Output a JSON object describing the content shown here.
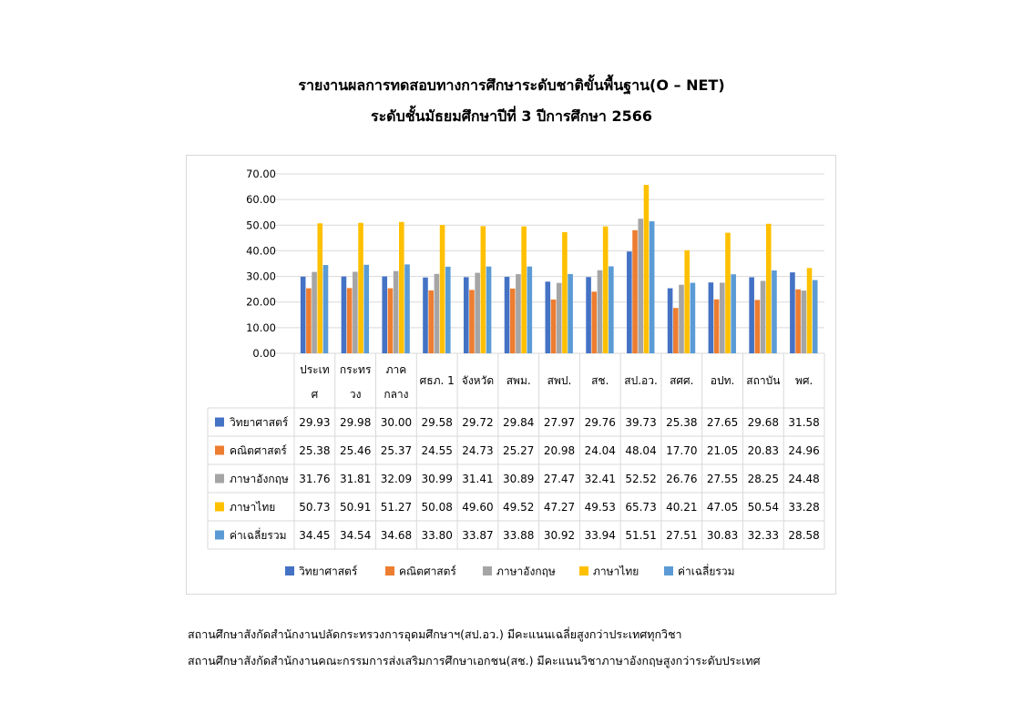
{
  "title_line1": "รายงานผลการทดสอบทางการศึกษาระดับชาติขั้นพื้นฐาน(O – NET)",
  "title_line2": "ระดับชั้นมัธยมศึกษาปีที่ 3  ปีการศึกษา 2566",
  "notes": [
    "สถานศึกษาสังกัดสำนักงานปลัดกระทรวงการอุดมศึกษาฯ(สป.อว.) มีคะแนนเฉลี่ยสูงกว่าประเทศทุกวิชา",
    "สถานศึกษาสังกัดสำนักงานคณะกรรมการส่งเสริมการศึกษาเอกชน(สช.) มีคะแนนวิชาภาษาอังกฤษสูงกว่าระดับประเทศ"
  ],
  "chart_data": {
    "type": "bar",
    "title": "",
    "xlabel": "",
    "ylabel": "",
    "ylim": [
      0,
      70
    ],
    "y_ticks": [
      "0.00",
      "10.00",
      "20.00",
      "30.00",
      "40.00",
      "50.00",
      "60.00",
      "70.00"
    ],
    "grid": true,
    "legend_position": "bottom",
    "data_table": true,
    "categories": [
      [
        "ประเท",
        "ศ"
      ],
      [
        "กระทร",
        "วง"
      ],
      [
        "ภาค",
        "กลาง"
      ],
      [
        "ศธภ. 1"
      ],
      [
        "จังหวัด"
      ],
      [
        "สพม."
      ],
      [
        "สพป."
      ],
      [
        "สช."
      ],
      [
        "สป.อว."
      ],
      [
        "สศศ."
      ],
      [
        "อปท."
      ],
      [
        "สถาบัน"
      ],
      [
        "พศ."
      ]
    ],
    "series": [
      {
        "name": "วิทยาศาสตร์",
        "color": "#4472c4",
        "values": [
          29.93,
          29.98,
          30.0,
          29.58,
          29.72,
          29.84,
          27.97,
          29.76,
          39.73,
          25.38,
          27.65,
          29.68,
          31.58
        ],
        "labels": [
          "29.93",
          "29.98",
          "30.00",
          "29.58",
          "29.72",
          "29.84",
          "27.97",
          "29.76",
          "39.73",
          "25.38",
          "27.65",
          "29.68",
          "31.58"
        ]
      },
      {
        "name": "คณิตศาสตร์",
        "color": "#ed7d31",
        "values": [
          25.38,
          25.46,
          25.37,
          24.55,
          24.73,
          25.27,
          20.98,
          24.04,
          48.04,
          17.7,
          21.05,
          20.83,
          24.96
        ],
        "labels": [
          "25.38",
          "25.46",
          "25.37",
          "24.55",
          "24.73",
          "25.27",
          "20.98",
          "24.04",
          "48.04",
          "17.70",
          "21.05",
          "20.83",
          "24.96"
        ]
      },
      {
        "name": "ภาษาอังกฤษ",
        "color": "#a5a5a5",
        "values": [
          31.76,
          31.81,
          32.09,
          30.99,
          31.41,
          30.89,
          27.47,
          32.41,
          52.52,
          26.76,
          27.55,
          28.25,
          24.48
        ],
        "labels": [
          "31.76",
          "31.81",
          "32.09",
          "30.99",
          "31.41",
          "30.89",
          "27.47",
          "32.41",
          "52.52",
          "26.76",
          "27.55",
          "28.25",
          "24.48"
        ]
      },
      {
        "name": "ภาษาไทย",
        "color": "#ffc000",
        "values": [
          50.73,
          50.91,
          51.27,
          50.08,
          49.6,
          49.52,
          47.27,
          49.53,
          65.73,
          40.21,
          47.05,
          50.54,
          33.28
        ],
        "labels": [
          "50.73",
          "50.91",
          "51.27",
          "50.08",
          "49.60",
          "49.52",
          "47.27",
          "49.53",
          "65.73",
          "40.21",
          "47.05",
          "50.54",
          "33.28"
        ]
      },
      {
        "name": "ค่าเฉลี่ยรวม",
        "color": "#5b9bd5",
        "values": [
          34.45,
          34.54,
          34.68,
          33.8,
          33.87,
          33.88,
          30.92,
          33.94,
          51.51,
          27.51,
          30.83,
          32.33,
          28.58
        ],
        "labels": [
          "34.45",
          "34.54",
          "34.68",
          "33.80",
          "33.87",
          "33.88",
          "30.92",
          "33.94",
          "51.51",
          "27.51",
          "30.83",
          "32.33",
          "28.58"
        ]
      }
    ]
  }
}
